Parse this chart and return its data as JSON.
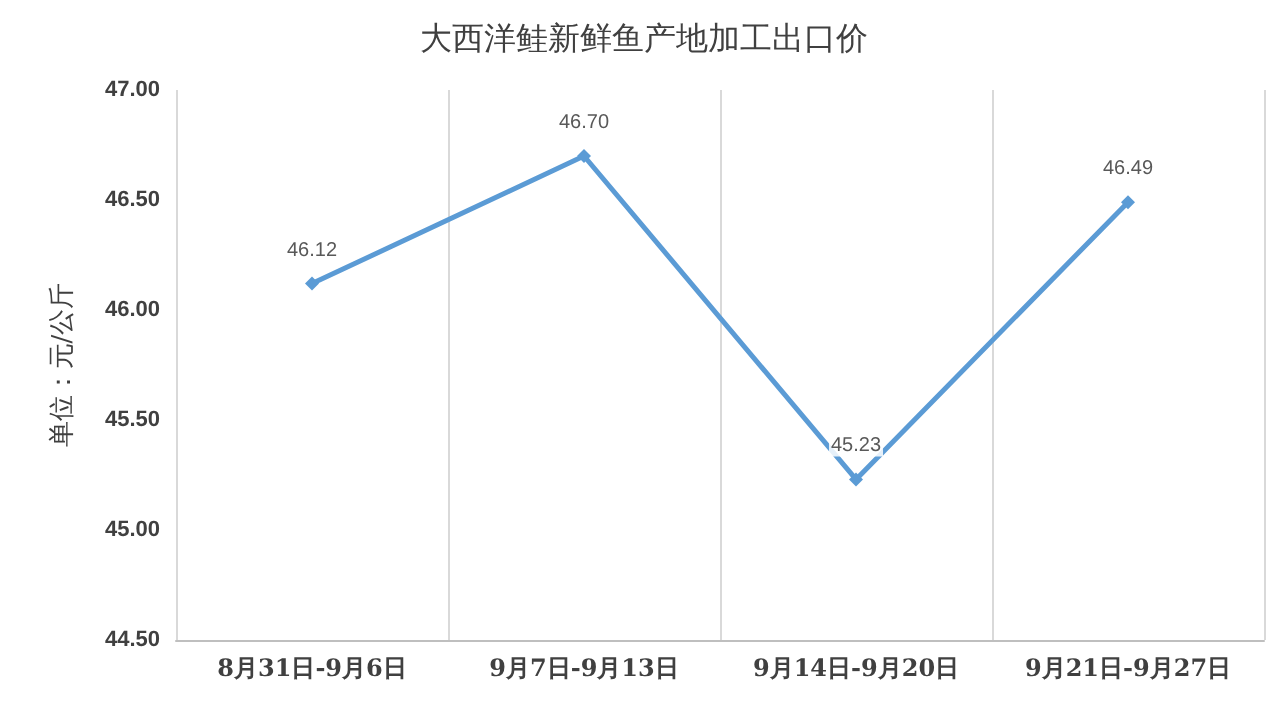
{
  "chart_data": {
    "type": "line",
    "title": "大西洋鲑新鲜鱼产地加工出口价",
    "ylabel": "单位：元/公斤",
    "categories": [
      "8月31日-9月6日",
      "9月7日-9月13日",
      "9月14日-9月20日",
      "9月21日-9月27日"
    ],
    "series": [
      {
        "color": "#5b9bd5",
        "values": [
          46.12,
          46.7,
          45.23,
          46.49
        ],
        "value_labels": [
          "46.12",
          "46.70",
          "45.23",
          "46.49"
        ]
      }
    ],
    "ylim": [
      44.5,
      47
    ],
    "yticks": [
      {
        "value": 44.5,
        "label": "44.50"
      },
      {
        "value": 45,
        "label": "45.00"
      },
      {
        "value": 45.5,
        "label": "45.50"
      },
      {
        "value": 46,
        "label": "46.00"
      },
      {
        "value": 46.5,
        "label": "46.50"
      },
      {
        "value": 47,
        "label": "47.00"
      }
    ],
    "grid": "x",
    "marker": "diamond",
    "line_style": "solid"
  }
}
